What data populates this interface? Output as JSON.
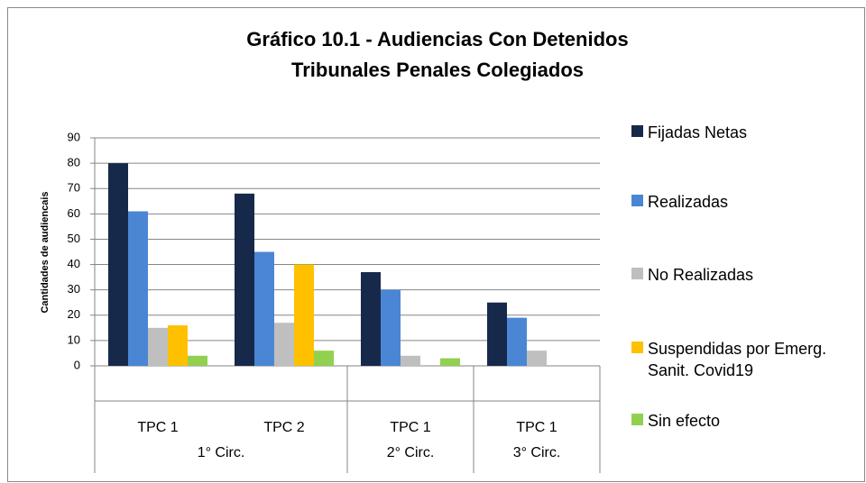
{
  "chart_data": {
    "type": "bar",
    "title": [
      "Gráfico 10.1 - Audiencias Con Detenidos",
      "Tribunales Penales Colegiados"
    ],
    "y_axis_label": "Cantidades de audiencais",
    "categories": [
      "TPC 1",
      "TPC 2",
      "TPC 1",
      "TPC 1"
    ],
    "category_groups": [
      "1° Circ.",
      "1° Circ.",
      "2° Circ.",
      "3° Circ."
    ],
    "series": [
      {
        "name": "Fijadas Netas",
        "color": "#17294a",
        "values": [
          80,
          68,
          37,
          25
        ]
      },
      {
        "name": "Realizadas",
        "color": "#4a86d4",
        "values": [
          61,
          45,
          30,
          19
        ]
      },
      {
        "name": "No Realizadas",
        "color": "#bfbfbf",
        "values": [
          15,
          17,
          4,
          6
        ]
      },
      {
        "name": "Suspendidas por Emerg. Sanit. Covid19",
        "color": "#ffc000",
        "values": [
          16,
          40,
          0,
          0
        ]
      },
      {
        "name": "Sin efecto",
        "color": "#92d050",
        "values": [
          4,
          6,
          3,
          0
        ]
      }
    ],
    "ylim": [
      0,
      90
    ],
    "yticks": [
      0,
      10,
      20,
      30,
      40,
      50,
      60,
      70,
      80,
      90
    ],
    "grid": true,
    "legend": "right"
  }
}
